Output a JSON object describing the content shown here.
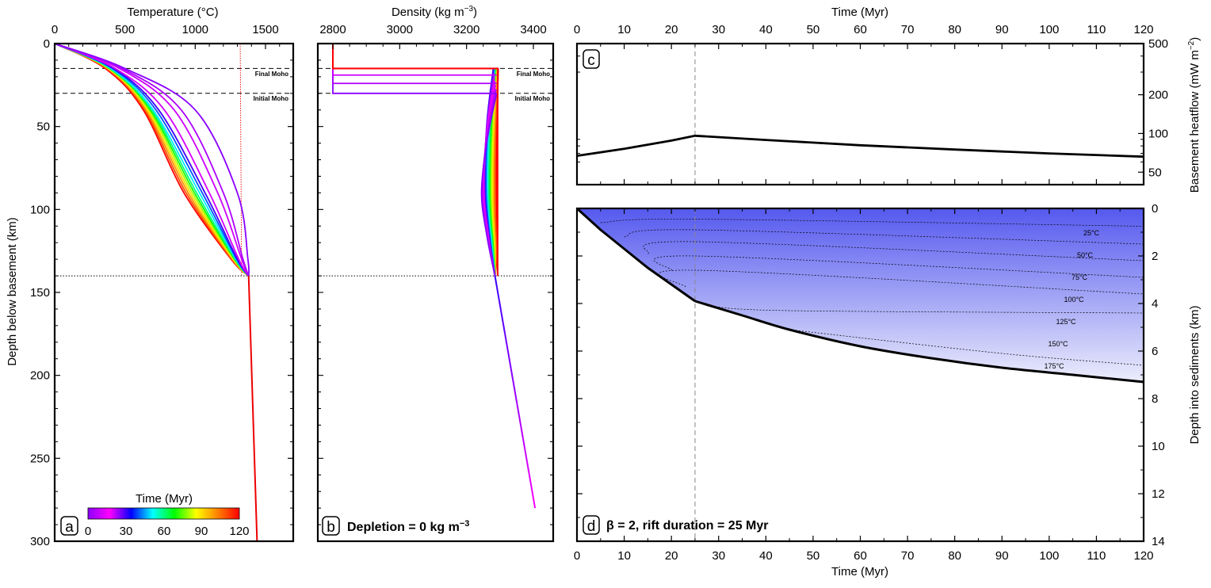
{
  "colors": {
    "time_colormap": [
      "#8b00ff",
      "#ff00ff",
      "#0000ff",
      "#00ffff",
      "#00ff00",
      "#ffff00",
      "#ff8000",
      "#ff0000"
    ],
    "heat_line": "#000000",
    "sediment_top": "#5559ee",
    "sediment_bottom": "#ecedfc"
  },
  "chart_data": [
    {
      "panel": "a",
      "type": "line",
      "xlabel": "Temperature (°C)",
      "ylabel": "Depth below basement (km)",
      "xticks": [
        "0",
        "500",
        "1000",
        "1500"
      ],
      "yticks": [
        "0",
        "50",
        "100",
        "150",
        "200",
        "250",
        "300"
      ],
      "xlim": [
        0,
        1700
      ],
      "ylim": [
        0,
        300
      ],
      "x_axis_position": "top",
      "y_reversed": true,
      "moho_labels": {
        "final": "Final Moho",
        "initial": "Initial Moho"
      },
      "moho_depths": [
        15,
        30
      ],
      "lithosphere_base": 140,
      "adiabat": [
        [
          1320,
          0
        ],
        [
          1330,
          140
        ]
      ],
      "geotherm_series": [
        {
          "t": 0,
          "points": [
            [
              0,
              0
            ],
            [
              500,
              15
            ],
            [
              1000,
              40
            ],
            [
              1300,
              90
            ],
            [
              1375,
              130
            ],
            [
              1380,
              140
            ]
          ]
        },
        {
          "t": 5,
          "points": [
            [
              0,
              0
            ],
            [
              480,
              15
            ],
            [
              900,
              40
            ],
            [
              1200,
              90
            ],
            [
              1340,
              130
            ],
            [
              1380,
              140
            ]
          ]
        },
        {
          "t": 10,
          "points": [
            [
              0,
              0
            ],
            [
              460,
              15
            ],
            [
              850,
              40
            ],
            [
              1160,
              90
            ],
            [
              1330,
              130
            ],
            [
              1380,
              140
            ]
          ]
        },
        {
          "t": 20,
          "points": [
            [
              0,
              0
            ],
            [
              430,
              15
            ],
            [
              780,
              40
            ],
            [
              1100,
              90
            ],
            [
              1310,
              130
            ],
            [
              1380,
              140
            ]
          ]
        },
        {
          "t": 30,
          "points": [
            [
              0,
              0
            ],
            [
              420,
              15
            ],
            [
              740,
              40
            ],
            [
              1070,
              90
            ],
            [
              1300,
              130
            ],
            [
              1380,
              140
            ]
          ]
        },
        {
          "t": 40,
          "points": [
            [
              0,
              0
            ],
            [
              410,
              15
            ],
            [
              720,
              40
            ],
            [
              1050,
              90
            ],
            [
              1295,
              130
            ],
            [
              1380,
              140
            ]
          ]
        },
        {
          "t": 50,
          "points": [
            [
              0,
              0
            ],
            [
              400,
              15
            ],
            [
              700,
              40
            ],
            [
              1030,
              90
            ],
            [
              1290,
              130
            ],
            [
              1380,
              140
            ]
          ]
        },
        {
          "t": 60,
          "points": [
            [
              0,
              0
            ],
            [
              395,
              15
            ],
            [
              690,
              40
            ],
            [
              1010,
              90
            ],
            [
              1285,
              130
            ],
            [
              1380,
              140
            ]
          ]
        },
        {
          "t": 70,
          "points": [
            [
              0,
              0
            ],
            [
              390,
              15
            ],
            [
              680,
              40
            ],
            [
              995,
              90
            ],
            [
              1280,
              130
            ],
            [
              1380,
              140
            ]
          ]
        },
        {
          "t": 80,
          "points": [
            [
              0,
              0
            ],
            [
              385,
              15
            ],
            [
              670,
              40
            ],
            [
              980,
              90
            ],
            [
              1275,
              130
            ],
            [
              1380,
              140
            ]
          ]
        },
        {
          "t": 90,
          "points": [
            [
              0,
              0
            ],
            [
              380,
              15
            ],
            [
              660,
              40
            ],
            [
              965,
              90
            ],
            [
              1270,
              130
            ],
            [
              1380,
              140
            ]
          ]
        },
        {
          "t": 100,
          "points": [
            [
              0,
              0
            ],
            [
              375,
              15
            ],
            [
              650,
              40
            ],
            [
              950,
              90
            ],
            [
              1265,
              130
            ],
            [
              1380,
              140
            ]
          ]
        },
        {
          "t": 110,
          "points": [
            [
              0,
              0
            ],
            [
              370,
              15
            ],
            [
              640,
              40
            ],
            [
              935,
              90
            ],
            [
              1260,
              130
            ],
            [
              1380,
              140
            ]
          ]
        },
        {
          "t": 120,
          "points": [
            [
              0,
              0
            ],
            [
              360,
              15
            ],
            [
              630,
              40
            ],
            [
              920,
              90
            ],
            [
              1255,
              130
            ],
            [
              1380,
              140
            ]
          ]
        }
      ],
      "asthenosphere_line": [
        [
          1380,
          140
        ],
        [
          1440,
          300
        ]
      ],
      "colorbar": {
        "label": "Time (Myr)",
        "ticks": [
          "0",
          "30",
          "60",
          "90",
          "120"
        ],
        "range": [
          0,
          120
        ]
      }
    },
    {
      "panel": "b",
      "type": "line",
      "xlabel": "Density (kg m−3)",
      "xticks": [
        "2800",
        "3000",
        "3200",
        "3400"
      ],
      "xlim": [
        2770,
        3450
      ],
      "ylim": [
        0,
        300
      ],
      "x_axis_position": "top",
      "y_reversed": true,
      "moho_labels": {
        "final": "Final Moho",
        "initial": "Initial Moho"
      },
      "annotation": "Depletion = 0 kg m−3",
      "crust_steps": [
        {
          "t": 0,
          "moho": 30
        },
        {
          "t": 5,
          "moho": 24
        },
        {
          "t": 10,
          "moho": 19
        },
        {
          "t": 25,
          "moho": 15
        }
      ],
      "crust_density": 2800,
      "mantle_series": [
        {
          "t": 0,
          "points": [
            [
              3290,
              30
            ],
            [
              3260,
              60
            ],
            [
              3245,
              90
            ],
            [
              3260,
              115
            ],
            [
              3285,
              140
            ]
          ]
        },
        {
          "t": 30,
          "points": [
            [
              3280,
              15
            ],
            [
              3260,
              50
            ],
            [
              3255,
              90
            ],
            [
              3270,
              120
            ],
            [
              3285,
              140
            ]
          ]
        },
        {
          "t": 120,
          "points": [
            [
              3295,
              15
            ],
            [
              3290,
              60
            ],
            [
              3290,
              100
            ],
            [
              3292,
              125
            ],
            [
              3285,
              140
            ]
          ]
        }
      ],
      "deep_line": [
        [
          3285,
          140
        ],
        [
          3405,
          280
        ]
      ]
    },
    {
      "panel": "c",
      "type": "line",
      "xlabel": "Time (Myr)",
      "ylabel": "Basement heatflow (mW m−2)",
      "xticks": [
        "0",
        "10",
        "20",
        "30",
        "40",
        "50",
        "60",
        "70",
        "80",
        "90",
        "100",
        "110",
        "120"
      ],
      "xlim": [
        0,
        120
      ],
      "yticks": [
        "50",
        "100",
        "200",
        "500"
      ],
      "ylim": [
        40,
        500
      ],
      "y_scale": "log",
      "x_axis_position": "top",
      "y_axis_position": "right",
      "rift_end": 25,
      "series": [
        {
          "x": [
            0,
            10,
            20,
            25,
            40,
            60,
            80,
            100,
            120
          ],
          "y": [
            67,
            76,
            88,
            96,
            89,
            81,
            75,
            70,
            66
          ]
        }
      ]
    },
    {
      "panel": "d",
      "type": "area",
      "xlabel": "Time (Myr)",
      "ylabel": "Depth into sediments (km)",
      "xticks": [
        "0",
        "10",
        "20",
        "30",
        "40",
        "50",
        "60",
        "70",
        "80",
        "90",
        "100",
        "110",
        "120"
      ],
      "xlim": [
        0,
        120
      ],
      "yticks": [
        "0",
        "2",
        "4",
        "6",
        "8",
        "10",
        "12",
        "14"
      ],
      "ylim": [
        0,
        14
      ],
      "y_axis_position": "right",
      "y_reversed": true,
      "rift_end": 25,
      "annotation": "β = 2, rift duration = 25 Myr",
      "basement": {
        "x": [
          0,
          5,
          10,
          15,
          20,
          25,
          35,
          45,
          60,
          75,
          90,
          105,
          120
        ],
        "y": [
          0,
          0.9,
          1.7,
          2.5,
          3.2,
          3.9,
          4.5,
          5.1,
          5.8,
          6.3,
          6.7,
          7.0,
          7.3
        ]
      },
      "isotherms": [
        {
          "label": "25°C",
          "x": [
            5,
            25,
            120
          ],
          "y": [
            0.6,
            0.45,
            0.75
          ]
        },
        {
          "label": "50°C",
          "x": [
            10,
            25,
            120
          ],
          "y": [
            1.2,
            0.9,
            1.5
          ]
        },
        {
          "label": "75°C",
          "x": [
            15,
            25,
            120
          ],
          "y": [
            1.9,
            1.4,
            2.2
          ]
        },
        {
          "label": "100°C",
          "x": [
            20,
            25,
            120
          ],
          "y": [
            2.6,
            2.0,
            2.9
          ]
        },
        {
          "label": "125°C",
          "x": [
            23,
            25,
            120
          ],
          "y": [
            3.3,
            2.6,
            3.6
          ]
        },
        {
          "label": "150°C",
          "x": [
            28,
            45,
            120
          ],
          "y": [
            4.1,
            4.3,
            4.4
          ]
        },
        {
          "label": "175°C",
          "x": [
            45,
            90,
            120
          ],
          "y": [
            5.1,
            6.1,
            6.6
          ]
        }
      ]
    }
  ],
  "panel_letters": {
    "a": "a",
    "b": "b",
    "c": "c",
    "d": "d"
  }
}
